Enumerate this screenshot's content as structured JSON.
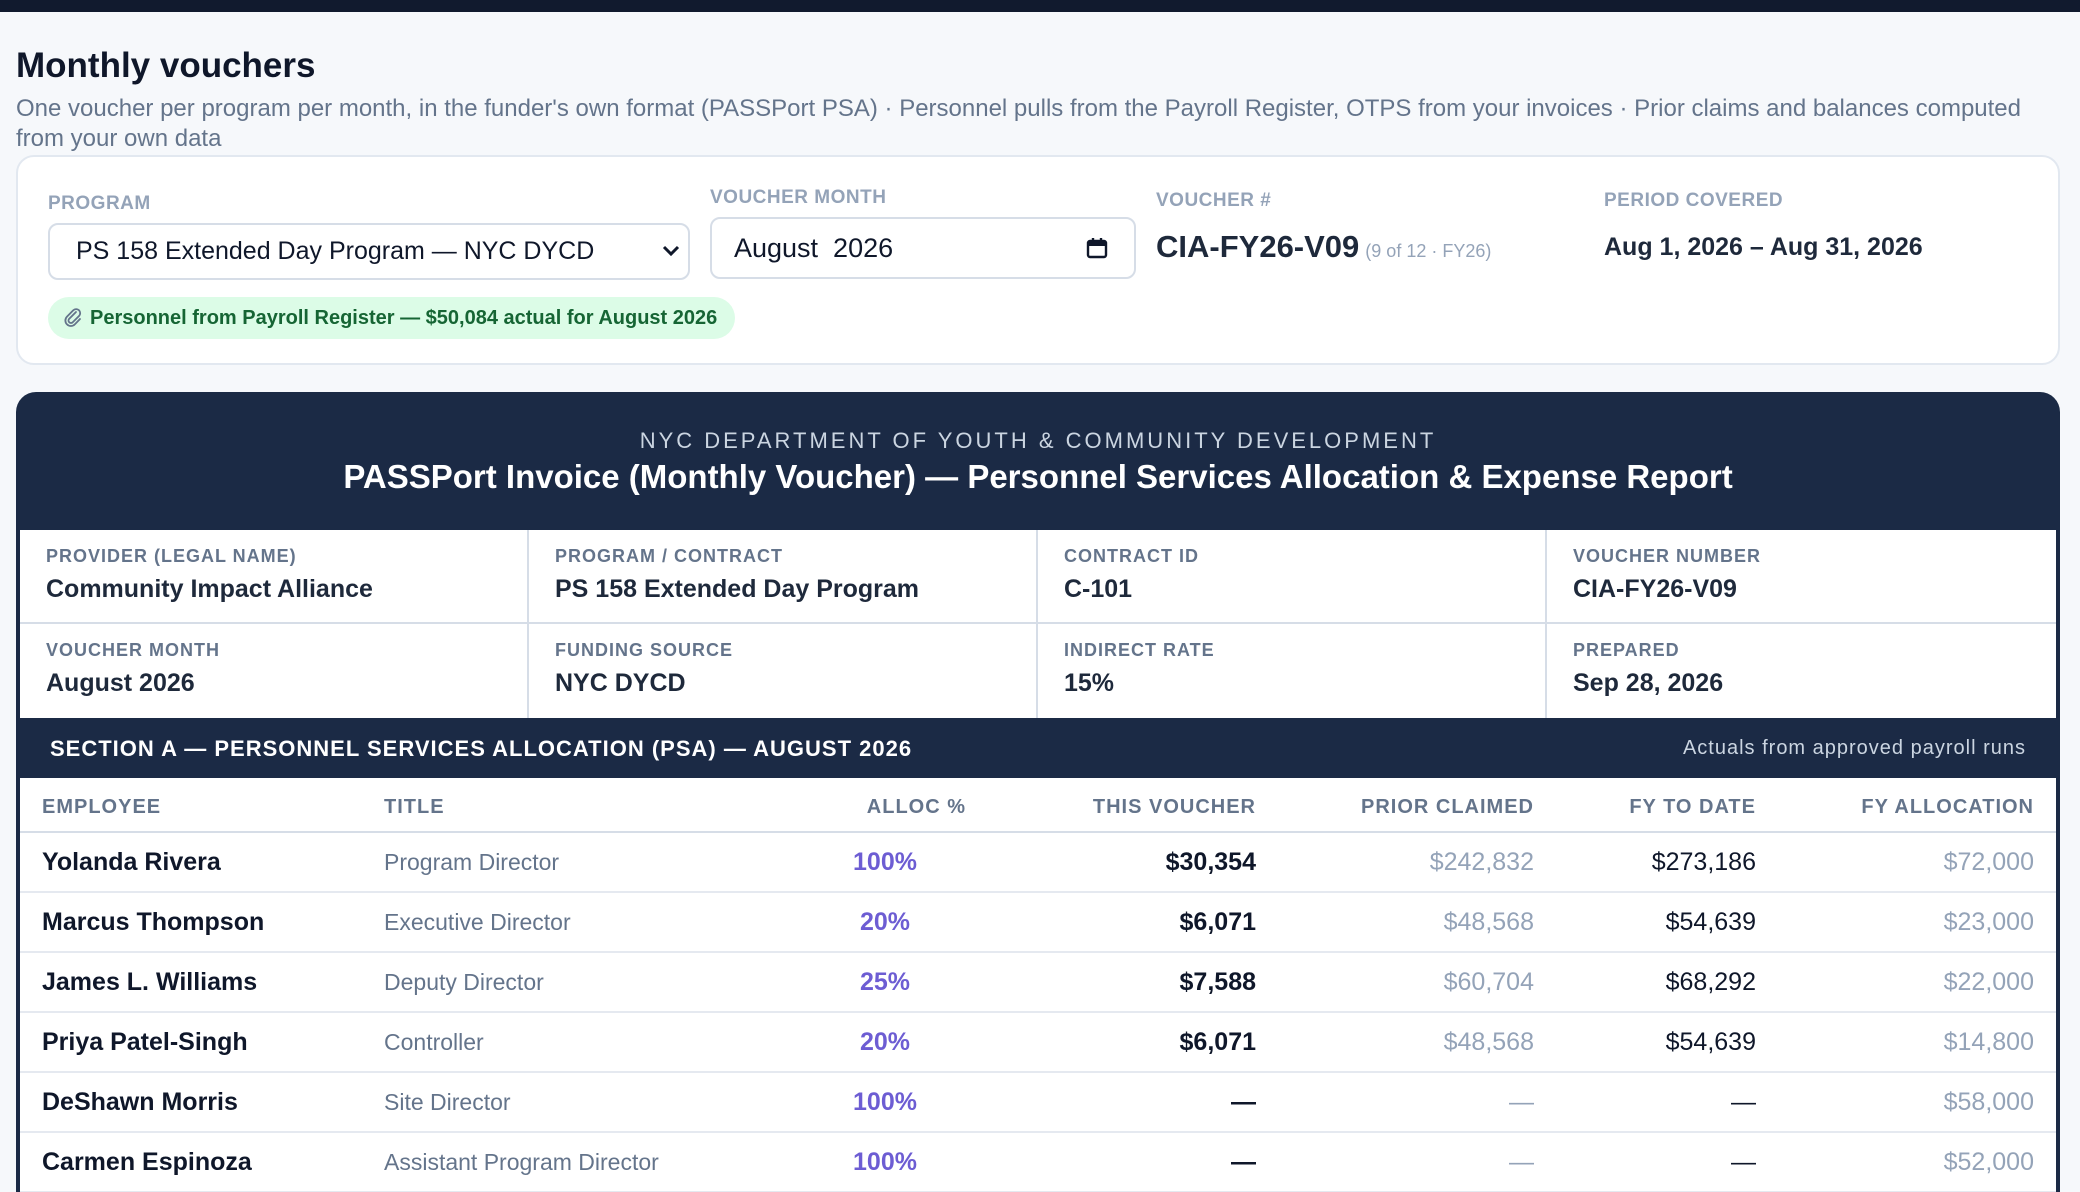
{
  "page": {
    "title": "Monthly vouchers",
    "subtitle": "One voucher per program per month, in the funder's own format (PASSPort PSA) · Personnel pulls from the Payroll Register, OTPS from your invoices · Prior claims and balances computed from your own data"
  },
  "controls": {
    "program_label": "PROGRAM",
    "program_value": "PS 158 Extended Day Program — NYC DYCD",
    "month_label": "VOUCHER MONTH",
    "month_value": "August  2026",
    "voucher_label": "VOUCHER #",
    "voucher_value": "CIA-FY26-V09",
    "voucher_sub": "(9 of 12 · FY26)",
    "period_label": "PERIOD COVERED",
    "period_value": "Aug 1, 2026 – Aug 31, 2026",
    "payroll_pill": "Personnel from Payroll Register — $50,084 actual for August 2026",
    "pill_icon": "paperclip-icon"
  },
  "form": {
    "agency": "NYC DEPARTMENT OF YOUTH & COMMUNITY DEVELOPMENT",
    "title": "PASSPort Invoice (Monthly Voucher) — Personnel Services Allocation & Expense Report",
    "info": [
      {
        "label": "PROVIDER (LEGAL NAME)",
        "value": "Community Impact Alliance"
      },
      {
        "label": "PROGRAM / CONTRACT",
        "value": "PS 158 Extended Day Program"
      },
      {
        "label": "CONTRACT ID",
        "value": "C-101"
      },
      {
        "label": "VOUCHER NUMBER",
        "value": "CIA-FY26-V09"
      },
      {
        "label": "VOUCHER MONTH",
        "value": "August 2026"
      },
      {
        "label": "FUNDING SOURCE",
        "value": "NYC DYCD"
      },
      {
        "label": "INDIRECT RATE",
        "value": "15%"
      },
      {
        "label": "PREPARED",
        "value": "Sep 28, 2026"
      }
    ],
    "section_title": "SECTION A — PERSONNEL SERVICES ALLOCATION (PSA) — AUGUST 2026",
    "section_note": "Actuals from approved payroll runs",
    "columns": [
      "EMPLOYEE",
      "TITLE",
      "ALLOC %",
      "THIS VOUCHER",
      "PRIOR CLAIMED",
      "FY TO DATE",
      "FY ALLOCATION"
    ],
    "rows": [
      {
        "employee": "Yolanda Rivera",
        "title": "Program Director",
        "alloc": "100%",
        "voucher": "$30,354",
        "prior": "$242,832",
        "fytd": "$273,186",
        "fyalloc": "$72,000"
      },
      {
        "employee": "Marcus Thompson",
        "title": "Executive Director",
        "alloc": "20%",
        "voucher": "$6,071",
        "prior": "$48,568",
        "fytd": "$54,639",
        "fyalloc": "$23,000"
      },
      {
        "employee": "James L. Williams",
        "title": "Deputy Director",
        "alloc": "25%",
        "voucher": "$7,588",
        "prior": "$60,704",
        "fytd": "$68,292",
        "fyalloc": "$22,000"
      },
      {
        "employee": "Priya Patel-Singh",
        "title": "Controller",
        "alloc": "20%",
        "voucher": "$6,071",
        "prior": "$48,568",
        "fytd": "$54,639",
        "fyalloc": "$14,800"
      },
      {
        "employee": "DeShawn Morris",
        "title": "Site Director",
        "alloc": "100%",
        "voucher": "—",
        "prior": "—",
        "fytd": "—",
        "fyalloc": "$58,000"
      },
      {
        "employee": "Carmen Espinoza",
        "title": "Assistant Program Director",
        "alloc": "100%",
        "voucher": "—",
        "prior": "—",
        "fytd": "—",
        "fyalloc": "$52,000"
      }
    ]
  }
}
